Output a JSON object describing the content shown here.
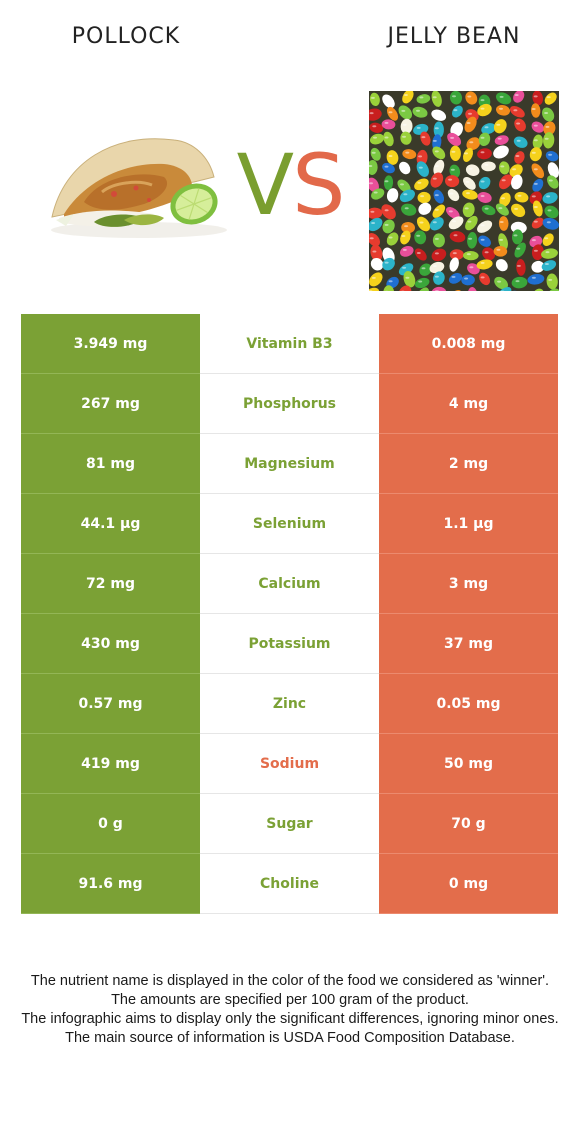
{
  "colors": {
    "winner_left": "#7ba135",
    "winner_right": "#e36d4b",
    "vs_v": "#7a9e2f",
    "vs_s": "#e2694a"
  },
  "foods": {
    "left": {
      "name": "POLLOCK",
      "image_icon": "fish-taco-image"
    },
    "right": {
      "name": "JELLY BEAN",
      "image_icon": "jelly-beans-image"
    }
  },
  "vs": {
    "v": "V",
    "s": "S"
  },
  "nutrients": [
    {
      "name": "Vitamin B3",
      "left": "3.949 mg",
      "right": "0.008 mg",
      "winner": "left"
    },
    {
      "name": "Phosphorus",
      "left": "267 mg",
      "right": "4 mg",
      "winner": "left"
    },
    {
      "name": "Magnesium",
      "left": "81 mg",
      "right": "2 mg",
      "winner": "left"
    },
    {
      "name": "Selenium",
      "left": "44.1 µg",
      "right": "1.1 µg",
      "winner": "left"
    },
    {
      "name": "Calcium",
      "left": "72 mg",
      "right": "3 mg",
      "winner": "left"
    },
    {
      "name": "Potassium",
      "left": "430 mg",
      "right": "37 mg",
      "winner": "left"
    },
    {
      "name": "Zinc",
      "left": "0.57 mg",
      "right": "0.05 mg",
      "winner": "left"
    },
    {
      "name": "Sodium",
      "left": "419 mg",
      "right": "50 mg",
      "winner": "right"
    },
    {
      "name": "Sugar",
      "left": "0 g",
      "right": "70 g",
      "winner": "left"
    },
    {
      "name": "Choline",
      "left": "91.6 mg",
      "right": "0 mg",
      "winner": "left"
    }
  ],
  "footer": {
    "line1": "The nutrient name is displayed in the color of the food we considered as 'winner'.",
    "line2": "The amounts are specified per 100 gram of the product.",
    "line3": "The infographic aims to display only the significant differences, ignoring minor ones.",
    "line4": "The main source of information is USDA Food Composition Database."
  }
}
